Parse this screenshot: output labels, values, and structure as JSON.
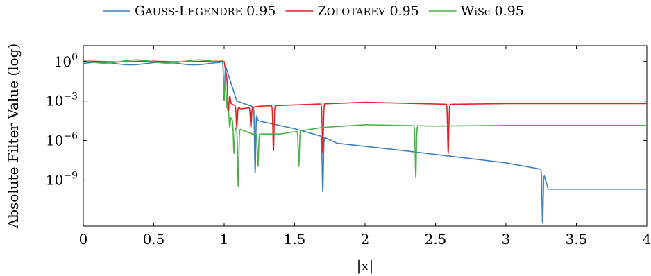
{
  "chart_data": {
    "type": "line",
    "xlabel": "|x|",
    "ylabel": "Absolute Filter Value (log)",
    "xlim": [
      0,
      4
    ],
    "ylim_log10": [
      -12.5,
      1.2
    ],
    "y_scale": "log",
    "legend_position": "top-center",
    "x_ticks": [
      0,
      0.5,
      1,
      1.5,
      2,
      2.5,
      3,
      3.5,
      4
    ],
    "x_tick_labels": [
      "0",
      "0.5",
      "1",
      "1.5",
      "2",
      "2.5",
      "3",
      "3.5",
      "4"
    ],
    "y_ticks_log10": [
      0,
      -3,
      -6,
      -9
    ],
    "y_tick_labels": [
      {
        "base": "10",
        "exp": "0"
      },
      {
        "base": "10",
        "exp": "−3"
      },
      {
        "base": "10",
        "exp": "−6"
      },
      {
        "base": "10",
        "exp": "−9"
      }
    ],
    "series": [
      {
        "name": "Gauss-Legendre 0.95",
        "legend_first": "G",
        "legend_rest": "AUSS",
        "legend_sep": "-",
        "legend_first2": "L",
        "legend_rest2": "EGENDRE",
        "legend_suffix": " 0.95",
        "color": "#3a7fbf",
        "plateau_log10": 0,
        "ripple_log10": 0.2,
        "notches": [
          1.0,
          1.22,
          1.7,
          3.26
        ],
        "notch_depth_log10": [
          -3.0,
          -8.5,
          -9.9,
          -12.3
        ],
        "envelope": [
          [
            1.0,
            0
          ],
          [
            1.09,
            -3.0
          ],
          [
            1.22,
            -3.5
          ],
          [
            1.24,
            -4.5
          ],
          [
            1.5,
            -5.1
          ],
          [
            1.7,
            -5.7
          ],
          [
            1.8,
            -6.2
          ],
          [
            2.3,
            -6.8
          ],
          [
            3.0,
            -7.7
          ],
          [
            3.26,
            -8.2
          ],
          [
            3.3,
            -9.7
          ],
          [
            4.0,
            -9.7
          ]
        ]
      },
      {
        "name": "Zolotarev 0.95",
        "legend_first": "Z",
        "legend_rest": "OLOTAREV",
        "legend_sep": "",
        "legend_first2": "",
        "legend_rest2": "",
        "legend_suffix": " 0.95",
        "color": "#d62728",
        "plateau_log10": 0,
        "ripple_log10": 0.05,
        "notches": [
          1.03,
          1.09,
          1.19,
          1.35,
          1.7,
          2.59
        ],
        "notch_depth_log10": [
          -4.0,
          -5.0,
          -5.0,
          -6.8,
          -6.9,
          -7.0
        ],
        "envelope": [
          [
            1.0,
            0
          ],
          [
            1.05,
            -3.2
          ],
          [
            1.12,
            -3.6
          ],
          [
            1.25,
            -3.4
          ],
          [
            1.5,
            -3.3
          ],
          [
            2.0,
            -3.1
          ],
          [
            2.59,
            -3.25
          ],
          [
            3.0,
            -3.2
          ],
          [
            4.0,
            -3.2
          ]
        ]
      },
      {
        "name": "WiSe 0.95",
        "legend_first": "W",
        "legend_rest": "iSe",
        "legend_sep": "",
        "legend_first2": "",
        "legend_rest2": "",
        "legend_suffix": " 0.95",
        "color": "#4daf4a",
        "plateau_log10": 0,
        "ripple_log10": 0.25,
        "notches": [
          1.0,
          1.04,
          1.07,
          1.1,
          1.24,
          1.53,
          2.36
        ],
        "notch_depth_log10": [
          -3.0,
          -5.0,
          -7.0,
          -9.5,
          -8.0,
          -8.0,
          -8.8
        ],
        "envelope": [
          [
            1.0,
            0.1
          ],
          [
            1.02,
            -3.5
          ],
          [
            1.08,
            -5.0
          ],
          [
            1.2,
            -5.5
          ],
          [
            1.4,
            -5.5
          ],
          [
            1.7,
            -5.0
          ],
          [
            2.0,
            -4.8
          ],
          [
            2.5,
            -4.9
          ],
          [
            3.0,
            -4.85
          ],
          [
            4.0,
            -4.85
          ]
        ]
      }
    ]
  }
}
